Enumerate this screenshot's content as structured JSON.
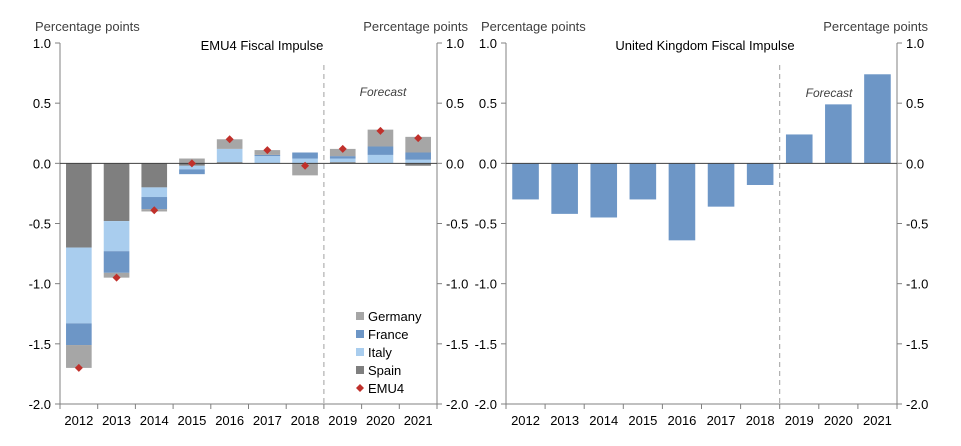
{
  "chart_data": [
    {
      "type": "bar",
      "stacked": true,
      "title": "EMU4 Fiscal Impulse",
      "ylabel_left": "Percentage points",
      "ylabel_right": "Percentage points",
      "ylim": [
        -2.0,
        1.0
      ],
      "yticks": [
        1.0,
        0.5,
        0.0,
        -0.5,
        -1.0,
        -1.5,
        -2.0
      ],
      "ytick_labels": [
        "1.0",
        "0.5",
        "0.0",
        "-0.5",
        "-1.0",
        "-1.5",
        "-2.0"
      ],
      "categories": [
        "2012",
        "2013",
        "2014",
        "2015",
        "2016",
        "2017",
        "2018",
        "2019",
        "2020",
        "2021"
      ],
      "forecast_label": "Forecast",
      "forecast_start_index": 7,
      "series": [
        {
          "name": "Spain",
          "color": "#7f7f7f",
          "values": [
            -0.7,
            -0.48,
            -0.2,
            -0.02,
            0.01,
            0.0,
            0.0,
            0.01,
            0.0,
            -0.02
          ]
        },
        {
          "name": "Italy",
          "color": "#a9cdee",
          "values": [
            -0.63,
            -0.25,
            -0.08,
            -0.03,
            0.11,
            0.06,
            0.04,
            0.03,
            0.07,
            0.03
          ]
        },
        {
          "name": "France",
          "color": "#6d96c6",
          "values": [
            -0.18,
            -0.18,
            -0.1,
            -0.04,
            0.0,
            0.01,
            0.05,
            0.02,
            0.07,
            0.06
          ]
        },
        {
          "name": "Germany",
          "color": "#a6a6a6",
          "values": [
            -0.19,
            -0.04,
            -0.02,
            0.04,
            0.08,
            0.04,
            -0.1,
            0.06,
            0.14,
            0.13
          ]
        }
      ],
      "marker_series": {
        "name": "EMU4",
        "color": "#c0302b",
        "values": [
          -1.7,
          -0.95,
          -0.39,
          0.0,
          0.2,
          0.11,
          -0.02,
          0.12,
          0.27,
          0.21
        ]
      },
      "legend": [
        "Germany",
        "France",
        "Italy",
        "Spain",
        "EMU4"
      ],
      "legend_position": "lower-right"
    },
    {
      "type": "bar",
      "title": "United Kingdom Fiscal Impulse",
      "ylabel_left": "Percentage points",
      "ylabel_right": "Percentage points",
      "ylim": [
        -2.0,
        1.0
      ],
      "yticks": [
        1.0,
        0.5,
        0.0,
        -0.5,
        -1.0,
        -1.5,
        -2.0
      ],
      "ytick_labels": [
        "1.0",
        "0.5",
        "0.0",
        "-0.5",
        "-1.0",
        "-1.5",
        "-2.0"
      ],
      "categories": [
        "2012",
        "2013",
        "2014",
        "2015",
        "2016",
        "2017",
        "2018",
        "2019",
        "2020",
        "2021"
      ],
      "forecast_label": "Forecast",
      "forecast_start_index": 7,
      "series": [
        {
          "name": "United Kingdom",
          "color": "#6d96c6",
          "values": [
            -0.3,
            -0.42,
            -0.45,
            -0.3,
            -0.64,
            -0.36,
            -0.18,
            0.24,
            0.49,
            0.74
          ]
        }
      ]
    }
  ]
}
